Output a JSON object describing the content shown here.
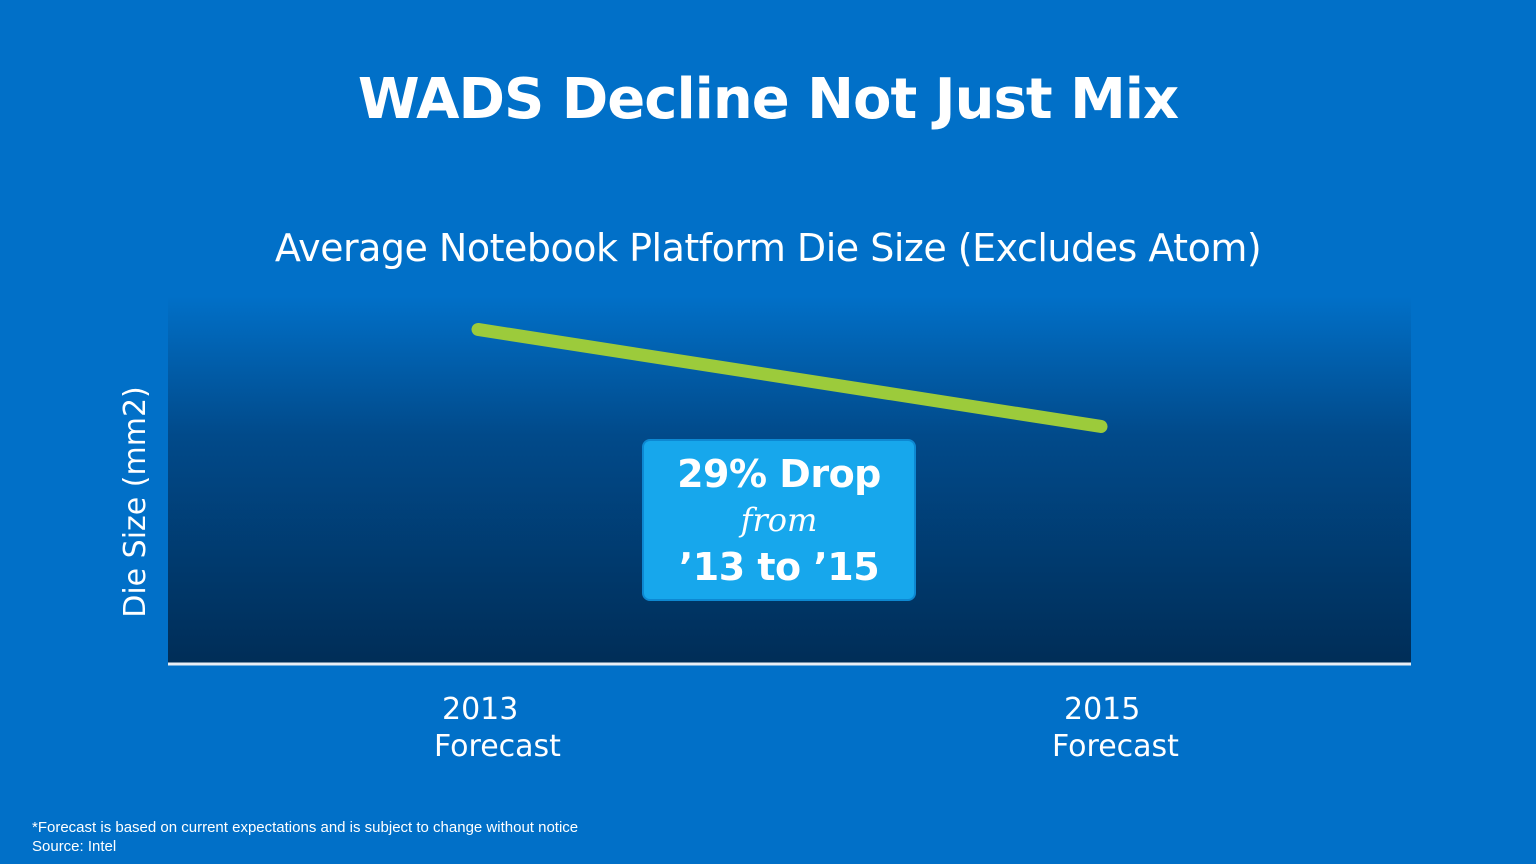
{
  "slide": {
    "title": "WADS Decline Not Just Mix"
  },
  "chart_data": {
    "type": "line",
    "title": "Average Notebook Platform Die Size (Excludes Atom)",
    "ylabel": "Die Size (mm2)",
    "xlabel": "",
    "categories": [
      {
        "year": "2013",
        "note": "Forecast"
      },
      {
        "year": "2015",
        "note": "Forecast"
      }
    ],
    "series": [
      {
        "values": [
          100,
          71
        ],
        "color": "#9ccb3b"
      }
    ],
    "ylim": [
      0,
      110
    ],
    "grid": false,
    "legend": "none",
    "annotation": {
      "headline": "29% Drop",
      "connector": "from",
      "range": "’13 to ’15"
    },
    "colors": {
      "background": "#0170c8",
      "plot_top": "#0170c8",
      "plot_bottom": "#002d57",
      "axis": "#e8eef5",
      "callout": "#17a7ec"
    }
  },
  "footnote": {
    "line1": "*Forecast  is based on current expectations and is subject to change without notice",
    "line2": "Source: Intel"
  }
}
